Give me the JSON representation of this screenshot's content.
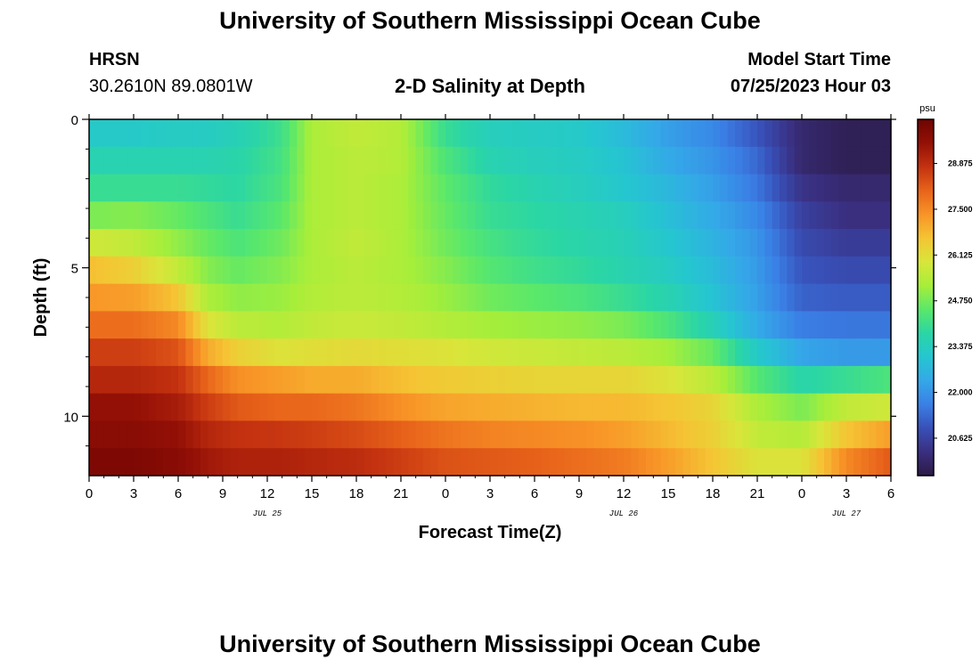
{
  "page": {
    "title": "University of Southern Mississippi Ocean Cube",
    "footer_title": "University of Southern Mississippi Ocean Cube",
    "station": "HRSN",
    "coords": "30.2610N  89.0801W",
    "subtitle": "2-D Salinity at Depth",
    "model_start_label": "Model Start Time",
    "model_start_value": "07/25/2023 Hour 03"
  },
  "colors": {
    "colormap": [
      "#2b1a45",
      "#3a2f80",
      "#3850b8",
      "#3a80e6",
      "#34a8e8",
      "#25c6d0",
      "#2bd6a5",
      "#5ae86a",
      "#a6ee3a",
      "#d8e63a",
      "#f5c434",
      "#f89427",
      "#e8631a",
      "#c43210",
      "#941006",
      "#6e0402"
    ],
    "frame": "#000000"
  },
  "chart_data": {
    "type": "heatmap",
    "variable": "Salinity",
    "unit": "psu",
    "xlabel": "Forecast Time(Z)",
    "ylabel": "Depth (ft)",
    "x_ticks": [
      "0",
      "3",
      "6",
      "9",
      "12",
      "15",
      "18",
      "21",
      "0",
      "3",
      "6",
      "9",
      "12",
      "15",
      "18",
      "21",
      "0",
      "3",
      "6"
    ],
    "x_hours_since_start": [
      0,
      3,
      6,
      9,
      12,
      15,
      18,
      21,
      24,
      27,
      30,
      33,
      36,
      39,
      42,
      45,
      48,
      51,
      54
    ],
    "date_labels": [
      {
        "text": "JUL 25",
        "hour": 12
      },
      {
        "text": "JUL 26",
        "hour": 36
      },
      {
        "text": "JUL 27",
        "hour": 51
      }
    ],
    "y_ticks": [
      "0",
      "5",
      "10"
    ],
    "y_tick_values": [
      0,
      5,
      10
    ],
    "y_range": [
      0,
      12
    ],
    "x_range": [
      0,
      54
    ],
    "colorbar": {
      "ticks": [
        "28.875",
        "27.500",
        "26.125",
        "24.750",
        "23.375",
        "22.000",
        "20.625"
      ],
      "tick_values": [
        28.875,
        27.5,
        26.125,
        24.75,
        23.375,
        22.0,
        20.625
      ],
      "range": [
        19.5,
        30.2
      ],
      "label": "psu"
    },
    "depth_layers_ft": [
      0,
      1,
      2,
      3,
      4,
      5,
      6,
      7,
      8,
      9,
      10,
      11,
      12
    ],
    "control_hours": [
      0,
      3,
      6,
      8,
      10,
      13,
      15,
      18,
      21,
      24,
      27,
      30,
      33,
      36,
      39,
      42,
      45,
      48,
      51,
      54
    ],
    "salinity_rows": [
      [
        23.2,
        23.2,
        23.3,
        23.3,
        23.5,
        24.1,
        25.3,
        25.6,
        25.4,
        24.0,
        23.4,
        23.3,
        23.2,
        22.8,
        22.2,
        21.8,
        21.0,
        20.0,
        19.7,
        19.7
      ],
      [
        23.6,
        23.6,
        23.6,
        23.6,
        23.7,
        24.2,
        25.3,
        25.5,
        25.4,
        24.3,
        23.6,
        23.4,
        23.3,
        23.0,
        22.4,
        22.0,
        21.3,
        20.0,
        19.7,
        19.7
      ],
      [
        24.0,
        24.0,
        24.0,
        23.9,
        23.8,
        24.3,
        25.3,
        25.5,
        25.3,
        24.5,
        23.9,
        23.6,
        23.4,
        23.1,
        22.7,
        22.2,
        21.5,
        20.3,
        20.0,
        20.0
      ],
      [
        24.8,
        24.9,
        24.6,
        24.3,
        24.0,
        24.5,
        25.3,
        25.5,
        25.3,
        24.6,
        24.0,
        23.8,
        23.6,
        23.4,
        22.9,
        22.4,
        21.8,
        20.6,
        20.2,
        20.2
      ],
      [
        25.8,
        25.6,
        25.0,
        24.6,
        24.3,
        24.7,
        25.3,
        25.6,
        25.3,
        24.7,
        24.2,
        23.9,
        23.7,
        23.5,
        23.1,
        22.6,
        22.0,
        20.8,
        20.5,
        20.5
      ],
      [
        26.7,
        26.4,
        25.6,
        24.9,
        24.6,
        24.9,
        25.3,
        25.5,
        25.3,
        24.9,
        24.4,
        24.1,
        23.9,
        23.6,
        23.3,
        22.8,
        22.1,
        21.0,
        20.8,
        20.8
      ],
      [
        27.3,
        27.2,
        26.6,
        25.3,
        25.0,
        25.1,
        25.4,
        25.5,
        25.4,
        25.1,
        24.7,
        24.5,
        24.3,
        24.0,
        23.6,
        23.0,
        22.2,
        21.2,
        21.1,
        21.1
      ],
      [
        27.9,
        27.9,
        27.5,
        26.0,
        25.5,
        25.4,
        25.6,
        25.7,
        25.6,
        25.4,
        25.2,
        25.1,
        25.0,
        24.8,
        24.3,
        23.5,
        22.4,
        21.6,
        21.5,
        21.5
      ],
      [
        28.6,
        28.6,
        28.3,
        27.0,
        26.4,
        26.0,
        26.1,
        26.2,
        26.1,
        26.0,
        25.8,
        25.7,
        25.6,
        25.5,
        25.2,
        24.6,
        23.2,
        22.3,
        22.1,
        22.1
      ],
      [
        29.0,
        29.0,
        28.8,
        28.0,
        27.4,
        27.2,
        27.0,
        27.0,
        26.7,
        26.5,
        26.4,
        26.3,
        26.3,
        26.3,
        26.0,
        25.5,
        24.4,
        23.7,
        24.0,
        24.3
      ],
      [
        29.5,
        29.5,
        29.2,
        28.6,
        28.2,
        28.0,
        28.0,
        27.8,
        27.4,
        27.1,
        27.0,
        26.9,
        26.8,
        26.8,
        26.6,
        26.3,
        25.3,
        24.8,
        25.6,
        25.8
      ],
      [
        29.7,
        29.7,
        29.5,
        29.0,
        28.8,
        28.7,
        28.6,
        28.4,
        28.1,
        27.8,
        27.6,
        27.5,
        27.4,
        27.2,
        26.8,
        26.4,
        25.6,
        25.4,
        26.6,
        27.2
      ],
      [
        29.9,
        29.9,
        29.7,
        29.3,
        29.1,
        29.1,
        29.0,
        28.9,
        28.6,
        28.3,
        28.2,
        28.1,
        27.9,
        27.7,
        27.2,
        26.6,
        26.0,
        26.0,
        27.5,
        28.2
      ]
    ]
  }
}
